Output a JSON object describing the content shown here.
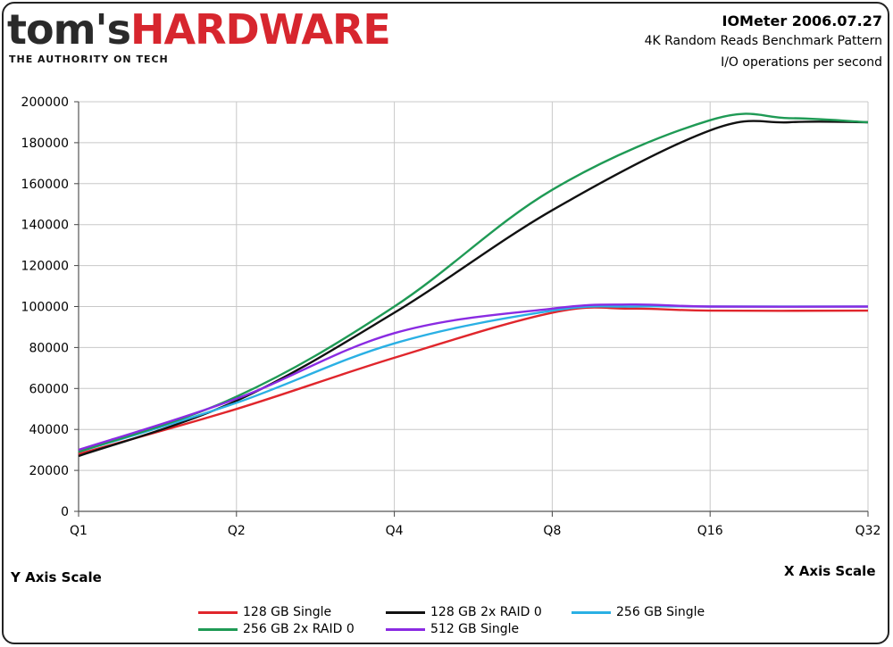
{
  "header": {
    "logo_toms": "tom's",
    "logo_hardware": "HARDWARE",
    "tagline": "THE AUTHORITY ON TECH",
    "title": "IOMeter 2006.07.27",
    "subtitle_1": "4K Random Reads Benchmark Pattern",
    "subtitle_2": "I/O operations per second"
  },
  "axis_notes": {
    "y": "Y Axis Scale",
    "x": "X Axis Scale"
  },
  "colors": {
    "logo_red": "#d7262e",
    "grid": "#c8c8c8"
  },
  "chart_data": {
    "type": "line",
    "categories": [
      "Q1",
      "Q2",
      "Q4",
      "Q8",
      "Q16",
      "Q32"
    ],
    "ylim": [
      0,
      200000
    ],
    "yticks": [
      "0",
      "20000",
      "40000",
      "60000",
      "80000",
      "100000",
      "120000",
      "140000",
      "160000",
      "180000",
      "200000"
    ],
    "grid": true,
    "legend_position": "bottom",
    "series": [
      {
        "name": "128 GB Single",
        "color": "#e0262c",
        "x": [
          0,
          1,
          2,
          3,
          3.5,
          4,
          5
        ],
        "y": [
          28000,
          50000,
          75000,
          97000,
          99000,
          98000,
          98000
        ]
      },
      {
        "name": "128 GB 2x RAID 0",
        "color": "#111111",
        "x": [
          0,
          1,
          2,
          3,
          4,
          4.5,
          5
        ],
        "y": [
          27000,
          54000,
          97000,
          147000,
          186000,
          190000,
          190000
        ]
      },
      {
        "name": "256 GB Single",
        "color": "#2ab0e4",
        "x": [
          0,
          1,
          2,
          3,
          3.5,
          4,
          5
        ],
        "y": [
          29000,
          53000,
          82000,
          98000,
          100000,
          100000,
          100000
        ]
      },
      {
        "name": "256 GB 2x RAID 0",
        "color": "#1f9a55",
        "x": [
          0,
          1,
          2,
          3,
          4,
          4.5,
          5
        ],
        "y": [
          29000,
          56000,
          100000,
          157000,
          191000,
          192000,
          190000
        ]
      },
      {
        "name": "512 GB Single",
        "color": "#8a2be2",
        "x": [
          0,
          1,
          2,
          3,
          3.5,
          4,
          5
        ],
        "y": [
          30000,
          55000,
          87000,
          99000,
          101000,
          100000,
          100000
        ]
      }
    ]
  }
}
